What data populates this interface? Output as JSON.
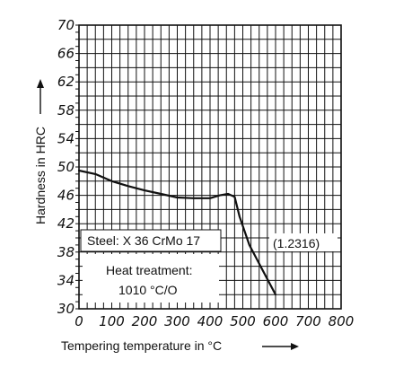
{
  "chart_data": {
    "type": "line",
    "xlabel": "Tempering temperature in °C",
    "ylabel": "Hardness in HRC",
    "xlim": [
      0,
      800
    ],
    "ylim": [
      30,
      70
    ],
    "x_ticks": [
      0,
      100,
      200,
      300,
      400,
      500,
      600,
      700,
      800
    ],
    "y_ticks": [
      30,
      34,
      38,
      42,
      46,
      50,
      54,
      58,
      62,
      66,
      70
    ],
    "grid": true,
    "series": [
      {
        "x": [
          0,
          50,
          100,
          150,
          200,
          250,
          300,
          350,
          400,
          430,
          455,
          475,
          490,
          520,
          560,
          600
        ],
        "y": [
          49.5,
          49.0,
          48.0,
          47.3,
          46.7,
          46.2,
          45.7,
          45.6,
          45.6,
          46.0,
          46.2,
          45.8,
          43.0,
          39.0,
          35.5,
          32.0
        ]
      }
    ],
    "annotations": {
      "steel": "Steel: X 36 CrMo 17",
      "material_number": "(1.2316)",
      "heat_treatment_line1": "Heat treatment:",
      "heat_treatment_line2": "1010 °C/O"
    }
  }
}
